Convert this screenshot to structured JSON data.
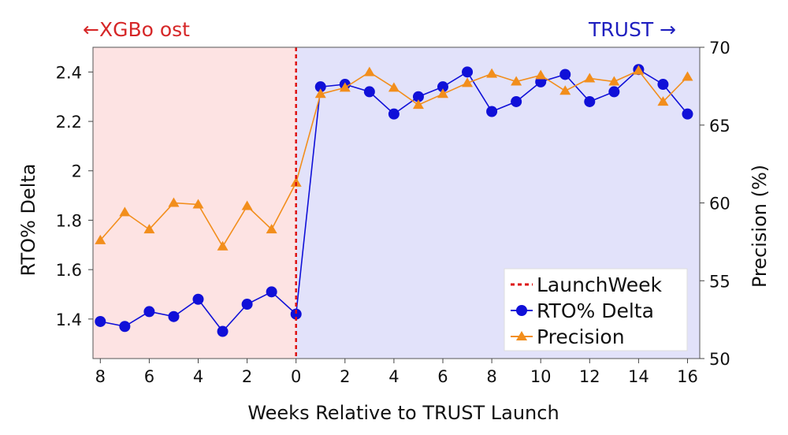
{
  "header": {
    "left_label": "←XGBo ost",
    "right_label": "TRUST →",
    "left_color": "#d62728",
    "right_color": "#1f1fbf"
  },
  "chart_data": {
    "type": "line",
    "xlabel": "Weeks Relative to TRUST Launch",
    "ylabel_left": "RTO% Delta",
    "ylabel_right": "Precision (%)",
    "x_tick_labels": [
      "8",
      "6",
      "4",
      "2",
      "0",
      "2",
      "4",
      "6",
      "8",
      "10",
      "12",
      "14",
      "16"
    ],
    "y_left_ticks": [
      "1.4",
      "1.6",
      "1.8",
      "2",
      "2.2",
      "2.4"
    ],
    "y_right_ticks": [
      "50",
      "55",
      "60",
      "65",
      "70"
    ],
    "ylim_left": [
      1.24,
      2.5
    ],
    "ylim_right": [
      50,
      70
    ],
    "xlim": [
      -8.3,
      16.5
    ],
    "pre_region_color": "#fde3e3",
    "post_region_color": "#e2e2fa",
    "launch_week": 0,
    "legend_position": "bottom-right",
    "legend": {
      "launch_label": "LaunchWeek",
      "rto_label": "RTO% Delta",
      "precision_label": "Precision"
    },
    "series": [
      {
        "name": "RTO% Delta",
        "axis": "left",
        "color": "#1010d8",
        "marker": "circle",
        "x": [
          -8,
          -7,
          -6,
          -5,
          -4,
          -3,
          -2,
          -1,
          0,
          1,
          2,
          3,
          4,
          5,
          6,
          7,
          8,
          9,
          10,
          11,
          12,
          13,
          14,
          15,
          16
        ],
        "values": [
          1.39,
          1.37,
          1.43,
          1.41,
          1.48,
          1.35,
          1.46,
          1.51,
          1.42,
          2.34,
          2.35,
          2.32,
          2.23,
          2.3,
          2.34,
          2.4,
          2.24,
          2.28,
          2.36,
          2.39,
          2.28,
          2.32,
          2.41,
          2.35,
          2.23
        ]
      },
      {
        "name": "Precision",
        "axis": "right",
        "color": "#f28e1c",
        "marker": "triangle",
        "x": [
          -8,
          -7,
          -6,
          -5,
          -4,
          -3,
          -2,
          -1,
          0,
          1,
          2,
          3,
          4,
          5,
          6,
          7,
          8,
          9,
          10,
          11,
          12,
          13,
          14,
          15,
          16
        ],
        "values": [
          57.6,
          59.4,
          58.3,
          60.0,
          59.9,
          57.2,
          59.8,
          58.3,
          61.3,
          67.0,
          67.4,
          68.4,
          67.4,
          66.3,
          67.0,
          67.7,
          68.3,
          67.8,
          68.2,
          67.2,
          68.0,
          67.8,
          68.5,
          66.5,
          68.1
        ]
      }
    ]
  }
}
